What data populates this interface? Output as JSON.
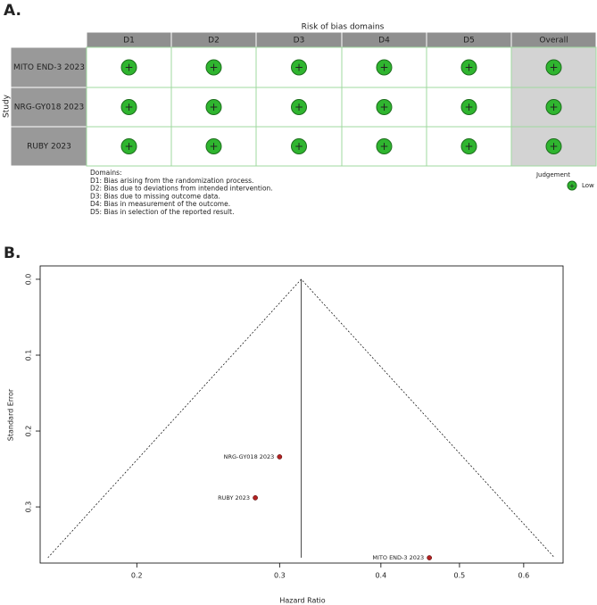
{
  "panel_labels": [
    "A.",
    "B."
  ],
  "risk_of_bias": {
    "title": "Risk of bias domains",
    "row_axis_label": "Study",
    "columns": [
      "D1",
      "D2",
      "D3",
      "D4",
      "D5",
      "Overall"
    ],
    "studies": [
      "MITO END-3 2023",
      "NRG-GY018 2023",
      "RUBY 2023"
    ],
    "judgements": [
      [
        "+",
        "+",
        "+",
        "+",
        "+",
        "+"
      ],
      [
        "+",
        "+",
        "+",
        "+",
        "+",
        "+"
      ],
      [
        "+",
        "+",
        "+",
        "+",
        "+",
        "+"
      ]
    ],
    "judgement_color": "#2fb52f",
    "domain_notes": [
      "Domains:",
      "D1: Bias arising from the randomization process.",
      "D2: Bias due to deviations from intended intervention.",
      "D3: Bias due to missing outcome data.",
      "D4: Bias in measurement of the outcome.",
      "D5: Bias in selection of the reported result."
    ],
    "legend_title": "Judgement",
    "legend_entries": [
      "Low"
    ]
  },
  "chart_data": {
    "type": "scatter",
    "x_label": "Hazard Ratio",
    "y_label": "Standard Error",
    "x_log": true,
    "y_reversed": true,
    "labels": [
      "MITO END-3 2023",
      "NRG-GY018 2023",
      "RUBY 2023"
    ],
    "x": [
      0.459,
      0.3,
      0.28
    ],
    "values": [
      0.367,
      0.234,
      0.288
    ],
    "color": "#b22222",
    "summary_estimate": 0.319,
    "xlim": [
      0.152,
      0.671
    ],
    "xticks": [
      0.2,
      0.3,
      0.4,
      0.5,
      0.6
    ],
    "ylim": [
      -0.0176,
      0.374
    ],
    "yticks": [
      {
        "value": 0,
        "label": "0.0"
      },
      0.1,
      0.2,
      0.3
    ]
  }
}
